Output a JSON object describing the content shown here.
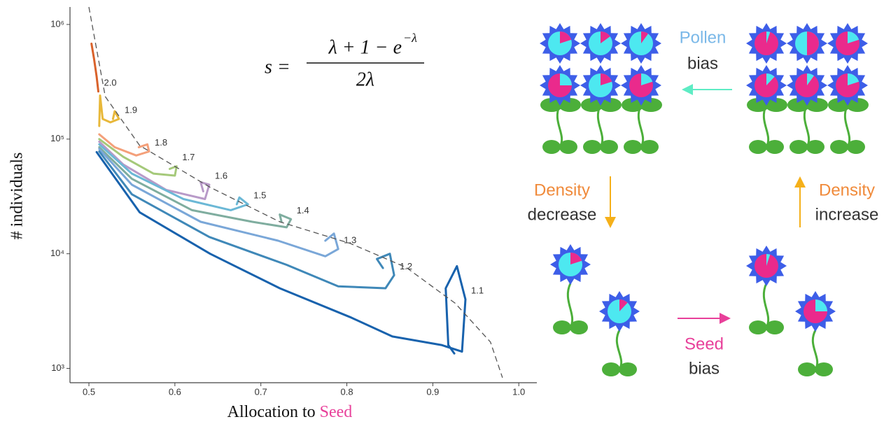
{
  "chart_data": {
    "type": "line",
    "log_y": true,
    "ylabel": "# individuals",
    "xlabel": "Allocation to",
    "xlabel_highlight": "Seed",
    "formula": {
      "lhs": "s =",
      "numerator": "λ + 1 − e",
      "exponent": "−λ",
      "denominator": "2λ"
    },
    "xlim": [
      0.478,
      1.021
    ],
    "ylim": [
      750,
      1420000
    ],
    "xticks": [
      0.5,
      0.6,
      0.7,
      0.8,
      0.9,
      {
        "value": 1,
        "label": "1.0"
      }
    ],
    "yticks": [
      {
        "value": 1000,
        "label": "10³"
      },
      {
        "value": 10000,
        "label": "10⁴"
      },
      {
        "value": 100000,
        "label": "10⁵"
      },
      {
        "value": 1000000,
        "label": "10⁶"
      }
    ],
    "curve": {
      "x": [
        0.5,
        0.519,
        0.559,
        0.641,
        0.722,
        0.804,
        0.869,
        0.926,
        0.967,
        0.981
      ],
      "values": [
        1420000,
        235000,
        88000,
        38000,
        19000,
        12300,
        7600,
        3700,
        1700,
        830
      ]
    },
    "series": [
      {
        "name": "2.0",
        "color": "#d9622b",
        "x": [
          0.503,
          0.506,
          0.509,
          0.511
        ],
        "values": [
          680000,
          500000,
          350000,
          260000
        ]
      },
      {
        "name": "1.9",
        "color": "#e8b83a",
        "x": [
          0.512,
          0.513,
          0.516,
          0.525,
          0.535,
          0.53,
          0.528
        ],
        "values": [
          130000,
          240000,
          150000,
          140000,
          150000,
          175000,
          150000
        ]
      },
      {
        "name": "1.8",
        "color": "#f4a07a",
        "x": [
          0.512,
          0.53,
          0.555,
          0.57,
          0.568,
          0.558
        ],
        "values": [
          110000,
          85000,
          72000,
          78000,
          90000,
          85000
        ]
      },
      {
        "name": "1.7",
        "color": "#a5c97a",
        "x": [
          0.512,
          0.54,
          0.575,
          0.6,
          0.602,
          0.594
        ],
        "values": [
          100000,
          70000,
          50000,
          48000,
          58000,
          55000
        ]
      },
      {
        "name": "1.6",
        "color": "#b89ac8",
        "x": [
          0.512,
          0.54,
          0.59,
          0.635,
          0.64,
          0.63,
          0.633
        ],
        "values": [
          95000,
          60000,
          36000,
          30000,
          40000,
          42000,
          35000
        ]
      },
      {
        "name": "1.5",
        "color": "#6bb8d6",
        "x": [
          0.512,
          0.55,
          0.61,
          0.665,
          0.685,
          0.675,
          0.672
        ],
        "values": [
          90000,
          50000,
          30000,
          24000,
          27000,
          31000,
          27000
        ]
      },
      {
        "name": "1.4",
        "color": "#7fad9f",
        "x": [
          0.512,
          0.55,
          0.62,
          0.69,
          0.73,
          0.735,
          0.722,
          0.724
        ],
        "values": [
          85000,
          45000,
          24000,
          19000,
          17000,
          20000,
          22000,
          19000
        ]
      },
      {
        "name": "1.3",
        "color": "#7aa7d8",
        "x": [
          0.512,
          0.55,
          0.63,
          0.72,
          0.775,
          0.79,
          0.785,
          0.775
        ],
        "values": [
          82000,
          40000,
          19000,
          13000,
          9500,
          11000,
          15000,
          13000
        ]
      },
      {
        "name": "1.2",
        "color": "#3f88b8",
        "x": [
          0.512,
          0.55,
          0.64,
          0.73,
          0.79,
          0.845,
          0.855,
          0.85,
          0.835,
          0.842
        ],
        "values": [
          78000,
          33000,
          14000,
          8000,
          5200,
          5000,
          6500,
          10000,
          9000,
          7500
        ]
      },
      {
        "name": "1.1",
        "color": "#1862ad",
        "x": [
          0.509,
          0.559,
          0.641,
          0.722,
          0.804,
          0.853,
          0.91,
          0.934,
          0.938,
          0.928,
          0.915,
          0.918,
          0.925
        ],
        "values": [
          77000,
          23000,
          10000,
          5000,
          2800,
          1900,
          1600,
          1400,
          4000,
          7800,
          5000,
          1600,
          1350
        ]
      }
    ]
  },
  "diagram": {
    "labels": {
      "pollen": "Pollen",
      "pollen_bias": "bias",
      "density_down": "Density",
      "decrease": "decrease",
      "density_up": "Density",
      "increase": "increase",
      "seed": "Seed",
      "seed_bias": "bias"
    }
  }
}
